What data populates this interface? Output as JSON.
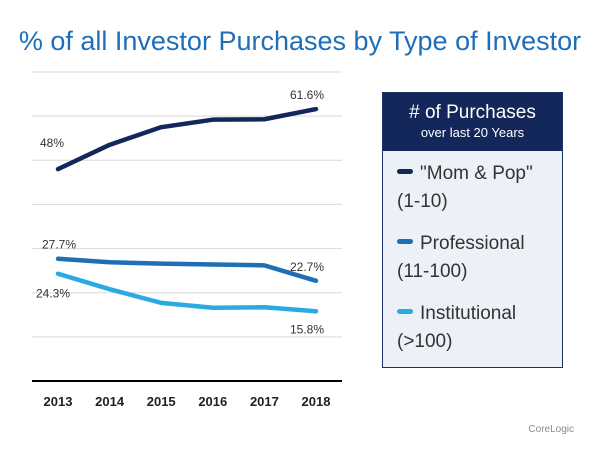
{
  "title": "% of all Investor Purchases by Type of Investor",
  "legend": {
    "heading": "# of Purchases",
    "subheading": "over last 20 Years",
    "items": [
      {
        "name": "\"Mom & Pop\"",
        "range": "(1-10)",
        "color": "#14275a"
      },
      {
        "name": "Professional",
        "range": "(11-100)",
        "color": "#1f6fb7"
      },
      {
        "name": "Institutional",
        "range": "(>100)",
        "color": "#29abe2"
      }
    ]
  },
  "credit": "CoreLogic",
  "chart_data": {
    "type": "line",
    "title": "% of all Investor Purchases by Type of Investor",
    "xlabel": "",
    "ylabel": "",
    "categories": [
      "2013",
      "2014",
      "2015",
      "2016",
      "2017",
      "2018"
    ],
    "ylim": [
      0,
      70
    ],
    "grid": true,
    "legend_position": "right",
    "series": [
      {
        "name": "\"Mom & Pop\" (1-10)",
        "color": "#14275a",
        "values": [
          48,
          53.5,
          57.5,
          59.2,
          59.3,
          61.6
        ],
        "labels": {
          "0": "48%",
          "5": "61.6%"
        }
      },
      {
        "name": "Professional (11-100)",
        "color": "#1f6fb7",
        "values": [
          27.7,
          26.9,
          26.6,
          26.4,
          26.2,
          22.7
        ],
        "labels": {
          "0": "27.7%",
          "5": "22.7%"
        }
      },
      {
        "name": "Institutional (>100)",
        "color": "#29abe2",
        "values": [
          24.3,
          20.8,
          17.7,
          16.6,
          16.7,
          15.8
        ],
        "labels": {
          "0": "24.3%",
          "5": "15.8%"
        }
      }
    ]
  }
}
